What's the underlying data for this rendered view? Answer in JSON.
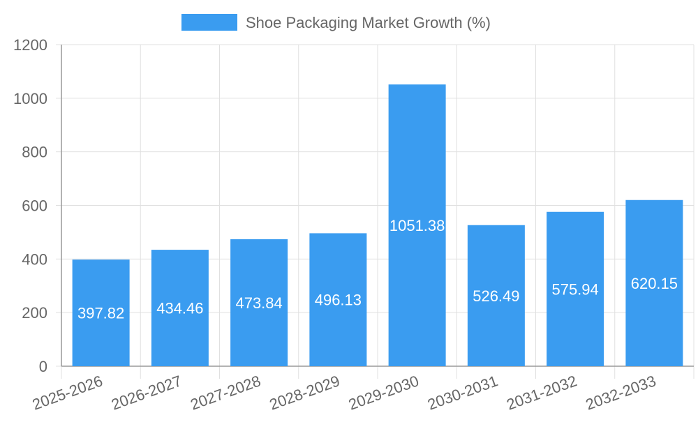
{
  "chart_data": {
    "type": "bar",
    "title": "",
    "xlabel": "",
    "ylabel": "",
    "categories": [
      "2025-2026",
      "2026-2027",
      "2027-2028",
      "2028-2029",
      "2029-2030",
      "2030-2031",
      "2031-2032",
      "2032-2033"
    ],
    "series": [
      {
        "name": "Shoe Packaging Market Growth (%)",
        "values": [
          397.82,
          434.46,
          473.84,
          496.13,
          1051.38,
          526.49,
          575.94,
          620.15
        ],
        "color": "#3a9cf0"
      }
    ],
    "data_labels": [
      "397.82",
      "434.46",
      "473.84",
      "496.13",
      "1051.38",
      "526.49",
      "575.94",
      "620.15"
    ],
    "ylim": [
      0,
      1200
    ],
    "yticks": [
      "0",
      "200",
      "400",
      "600",
      "800",
      "1000",
      "1200"
    ],
    "grid": true,
    "legend_position": "top-center",
    "colors": {
      "bar": "#3a9cf0",
      "grid": "#e0e0e0",
      "axis": "#999999",
      "tick_text": "#666666",
      "label_text": "#ffffff"
    }
  }
}
